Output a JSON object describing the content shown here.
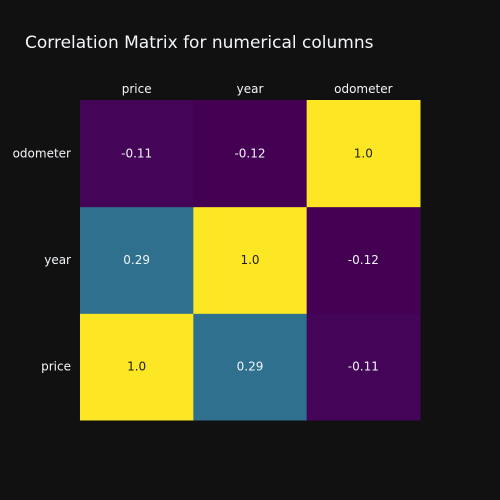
{
  "chart_data": {
    "type": "heatmap",
    "title": "Correlation Matrix for numerical columns",
    "x_categories": [
      "price",
      "year",
      "odometer"
    ],
    "y_categories": [
      "price",
      "year",
      "odometer"
    ],
    "x_axis_side": "top",
    "values": [
      [
        1.0,
        0.29,
        -0.11
      ],
      [
        0.29,
        1.0,
        -0.12
      ],
      [
        -0.11,
        -0.12,
        1.0
      ]
    ],
    "labels": [
      [
        "1.0",
        "0.29",
        "-0.11"
      ],
      [
        "0.29",
        "1.0",
        "-0.12"
      ],
      [
        "-0.11",
        "-0.12",
        "1.0"
      ]
    ],
    "colorscale": "viridis",
    "colorbar": false,
    "grid": false
  },
  "colors": {
    "background": "#111111",
    "text": "#f2f5fa",
    "label_dark": "#1e1e1e",
    "label_light": "#f2f5fa",
    "viridis": [
      "#440154",
      "#482878",
      "#3e4989",
      "#31688e",
      "#26828e",
      "#1f9e89",
      "#35b779",
      "#6ece58",
      "#b5de2b",
      "#fde725"
    ]
  }
}
